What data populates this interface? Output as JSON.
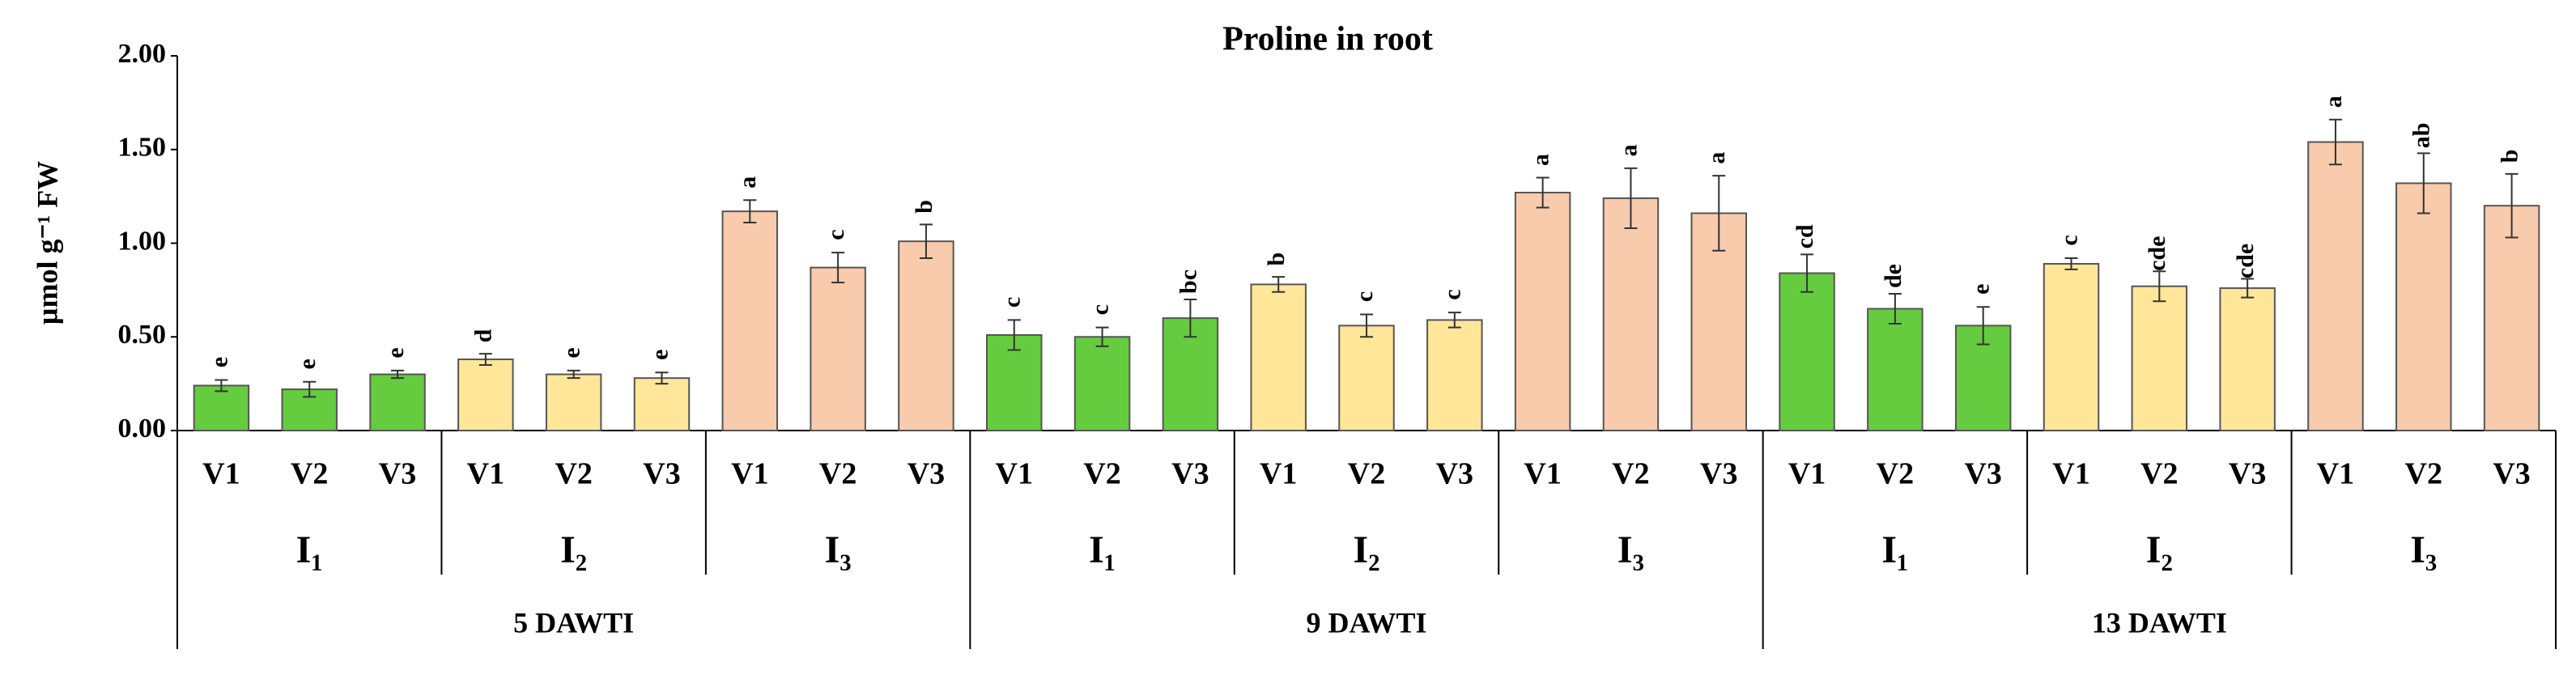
{
  "chart_data": {
    "type": "bar",
    "title": "Proline in root",
    "y_label": "µmol g⁻¹ FW",
    "ylim": [
      0,
      2
    ],
    "yticks": [
      {
        "value": 0,
        "label": "0.00"
      },
      {
        "value": 0.5,
        "label": "0.50"
      },
      {
        "value": 1,
        "label": "1.00"
      },
      {
        "value": 1.5,
        "label": "1.50"
      },
      {
        "value": 2,
        "label": "2.00"
      }
    ],
    "groups": [
      {
        "label": "5 DAWTI",
        "subgroups": [
          {
            "label": "I₁",
            "color": "#66cc3f",
            "categories": [
              "V1",
              "V2",
              "V3"
            ],
            "values": [
              0.24,
              0.22,
              0.3
            ],
            "errors": [
              0.03,
              0.04,
              0.02
            ],
            "letters": [
              "e",
              "e",
              "e"
            ]
          },
          {
            "label": "I₂",
            "color": "#ffe699",
            "categories": [
              "V1",
              "V2",
              "V3"
            ],
            "values": [
              0.38,
              0.3,
              0.28
            ],
            "errors": [
              0.03,
              0.02,
              0.03
            ],
            "letters": [
              "d",
              "e",
              "e"
            ]
          },
          {
            "label": "I₃",
            "color": "#f8cbad",
            "categories": [
              "V1",
              "V2",
              "V3"
            ],
            "values": [
              1.17,
              0.87,
              1.01
            ],
            "errors": [
              0.06,
              0.08,
              0.09
            ],
            "letters": [
              "a",
              "c",
              "b"
            ]
          }
        ]
      },
      {
        "label": "9 DAWTI",
        "subgroups": [
          {
            "label": "I₁",
            "color": "#66cc3f",
            "categories": [
              "V1",
              "V2",
              "V3"
            ],
            "values": [
              0.51,
              0.5,
              0.6
            ],
            "errors": [
              0.08,
              0.05,
              0.1
            ],
            "letters": [
              "c",
              "c",
              "bc"
            ]
          },
          {
            "label": "I₂",
            "color": "#ffe699",
            "categories": [
              "V1",
              "V2",
              "V3"
            ],
            "values": [
              0.78,
              0.56,
              0.59
            ],
            "errors": [
              0.04,
              0.06,
              0.04
            ],
            "letters": [
              "b",
              "c",
              "c"
            ]
          },
          {
            "label": "I₃",
            "color": "#f8cbad",
            "categories": [
              "V1",
              "V2",
              "V3"
            ],
            "values": [
              1.27,
              1.24,
              1.16
            ],
            "errors": [
              0.08,
              0.16,
              0.2
            ],
            "letters": [
              "a",
              "a",
              "a"
            ]
          }
        ]
      },
      {
        "label": "13 DAWTI",
        "subgroups": [
          {
            "label": "I₁",
            "color": "#66cc3f",
            "categories": [
              "V1",
              "V2",
              "V3"
            ],
            "values": [
              0.84,
              0.65,
              0.56
            ],
            "errors": [
              0.1,
              0.08,
              0.1
            ],
            "letters": [
              "cd",
              "de",
              "e"
            ]
          },
          {
            "label": "I₂",
            "color": "#ffe699",
            "categories": [
              "V1",
              "V2",
              "V3"
            ],
            "values": [
              0.89,
              0.77,
              0.76
            ],
            "errors": [
              0.03,
              0.08,
              0.05
            ],
            "letters": [
              "c",
              "cde",
              "cde"
            ]
          },
          {
            "label": "I₃",
            "color": "#f8cbad",
            "categories": [
              "V1",
              "V2",
              "V3"
            ],
            "values": [
              1.54,
              1.32,
              1.2
            ],
            "errors": [
              0.12,
              0.16,
              0.17
            ],
            "letters": [
              "a",
              "ab",
              "b"
            ]
          }
        ]
      }
    ]
  }
}
